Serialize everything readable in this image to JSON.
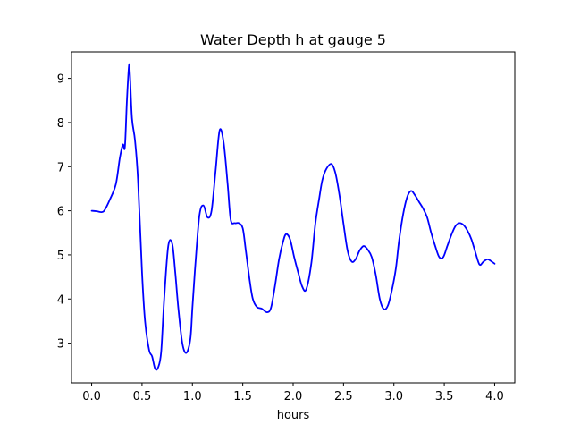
{
  "chart_data": {
    "type": "line",
    "title": "Water Depth h at gauge 5",
    "xlabel": "hours",
    "ylabel": "",
    "xlim": [
      -0.2,
      4.2
    ],
    "ylim": [
      2.1,
      9.6
    ],
    "xticks": [
      0.0,
      0.5,
      1.0,
      1.5,
      2.0,
      2.5,
      3.0,
      3.5,
      4.0
    ],
    "xtick_labels": [
      "0.0",
      "0.5",
      "1.0",
      "1.5",
      "2.0",
      "2.5",
      "3.0",
      "3.5",
      "4.0"
    ],
    "yticks": [
      3,
      4,
      5,
      6,
      7,
      8,
      9
    ],
    "ytick_labels": [
      "3",
      "4",
      "5",
      "6",
      "7",
      "8",
      "9"
    ],
    "grid": false,
    "series": [
      {
        "color": "#0000ff",
        "x": [
          0.0,
          0.05,
          0.1,
          0.13,
          0.18,
          0.24,
          0.28,
          0.31,
          0.33,
          0.35,
          0.37,
          0.38,
          0.4,
          0.43,
          0.46,
          0.5,
          0.53,
          0.57,
          0.6,
          0.63,
          0.66,
          0.69,
          0.72,
          0.76,
          0.8,
          0.83,
          0.86,
          0.9,
          0.94,
          0.98,
          1.0,
          1.03,
          1.07,
          1.11,
          1.15,
          1.19,
          1.23,
          1.27,
          1.31,
          1.35,
          1.38,
          1.42,
          1.46,
          1.5,
          1.53,
          1.57,
          1.6,
          1.64,
          1.69,
          1.74,
          1.78,
          1.82,
          1.86,
          1.9,
          1.93,
          1.97,
          2.01,
          2.05,
          2.09,
          2.13,
          2.18,
          2.22,
          2.26,
          2.29,
          2.33,
          2.38,
          2.42,
          2.46,
          2.5,
          2.54,
          2.58,
          2.62,
          2.66,
          2.7,
          2.74,
          2.78,
          2.82,
          2.86,
          2.9,
          2.94,
          2.98,
          3.02,
          3.05,
          3.09,
          3.13,
          3.17,
          3.21,
          3.25,
          3.29,
          3.33,
          3.37,
          3.41,
          3.45,
          3.49,
          3.53,
          3.57,
          3.61,
          3.65,
          3.69,
          3.73,
          3.77,
          3.81,
          3.85,
          3.89,
          3.93,
          3.97,
          4.0
        ],
        "y": [
          6.0,
          5.99,
          5.97,
          6.02,
          6.25,
          6.6,
          7.2,
          7.5,
          7.45,
          8.5,
          9.28,
          9.1,
          8.1,
          7.6,
          6.7,
          4.6,
          3.5,
          2.85,
          2.7,
          2.42,
          2.45,
          2.8,
          4.0,
          5.2,
          5.25,
          4.6,
          3.8,
          3.0,
          2.78,
          3.1,
          3.8,
          4.8,
          5.9,
          6.12,
          5.85,
          6.0,
          6.9,
          7.82,
          7.55,
          6.6,
          5.8,
          5.72,
          5.72,
          5.6,
          5.1,
          4.4,
          4.0,
          3.82,
          3.78,
          3.7,
          3.8,
          4.3,
          4.9,
          5.3,
          5.47,
          5.35,
          4.95,
          4.6,
          4.28,
          4.22,
          4.8,
          5.7,
          6.3,
          6.7,
          6.95,
          7.06,
          6.85,
          6.35,
          5.7,
          5.1,
          4.85,
          4.9,
          5.1,
          5.2,
          5.12,
          4.95,
          4.55,
          4.0,
          3.77,
          3.85,
          4.2,
          4.7,
          5.3,
          5.9,
          6.3,
          6.45,
          6.35,
          6.2,
          6.05,
          5.85,
          5.5,
          5.2,
          4.95,
          4.95,
          5.2,
          5.45,
          5.65,
          5.72,
          5.68,
          5.55,
          5.35,
          5.05,
          4.78,
          4.85,
          4.9,
          4.85,
          4.8
        ]
      }
    ]
  }
}
